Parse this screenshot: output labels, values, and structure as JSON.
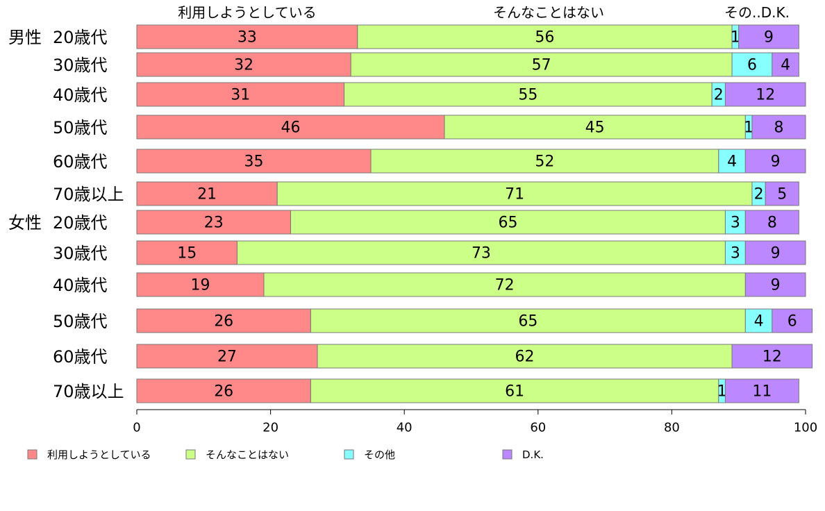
{
  "chart_data": {
    "type": "bar",
    "orientation": "horizontal",
    "stacked": true,
    "xlim": [
      0,
      100
    ],
    "xticks": [
      0,
      20,
      40,
      60,
      80,
      100
    ],
    "top_labels": [
      "利用しようとしている",
      "そんなことはない",
      "その..D.K."
    ],
    "rows": [
      {
        "group": "男性",
        "label": "20歳代",
        "values": [
          33,
          56,
          1,
          9
        ]
      },
      {
        "group": "",
        "label": "30歳代",
        "values": [
          32,
          57,
          6,
          4
        ]
      },
      {
        "group": "",
        "label": "40歳代",
        "values": [
          31,
          55,
          2,
          12
        ]
      },
      {
        "group": "",
        "label": "50歳代",
        "values": [
          46,
          45,
          1,
          8
        ]
      },
      {
        "group": "",
        "label": "60歳代",
        "values": [
          35,
          52,
          4,
          9
        ]
      },
      {
        "group": "",
        "label": "70歳以上",
        "values": [
          21,
          71,
          2,
          5
        ]
      },
      {
        "group": "女性",
        "label": "20歳代",
        "values": [
          23,
          65,
          3,
          8
        ]
      },
      {
        "group": "",
        "label": "30歳代",
        "values": [
          15,
          73,
          3,
          9
        ]
      },
      {
        "group": "",
        "label": "40歳代",
        "values": [
          19,
          72,
          0,
          9
        ]
      },
      {
        "group": "",
        "label": "50歳代",
        "values": [
          26,
          65,
          4,
          6
        ]
      },
      {
        "group": "",
        "label": "60歳代",
        "values": [
          27,
          62,
          0,
          12
        ]
      },
      {
        "group": "",
        "label": "70歳以上",
        "values": [
          26,
          61,
          1,
          11
        ]
      }
    ],
    "series": [
      {
        "name": "利用しようとしている",
        "color": "#ff8888"
      },
      {
        "name": "そんなことはない",
        "color": "#ccff88"
      },
      {
        "name": "その他",
        "color": "#88ffff"
      },
      {
        "name": "D.K.",
        "color": "#bb88ff"
      }
    ],
    "grid": false,
    "legend_position": "bottom"
  }
}
